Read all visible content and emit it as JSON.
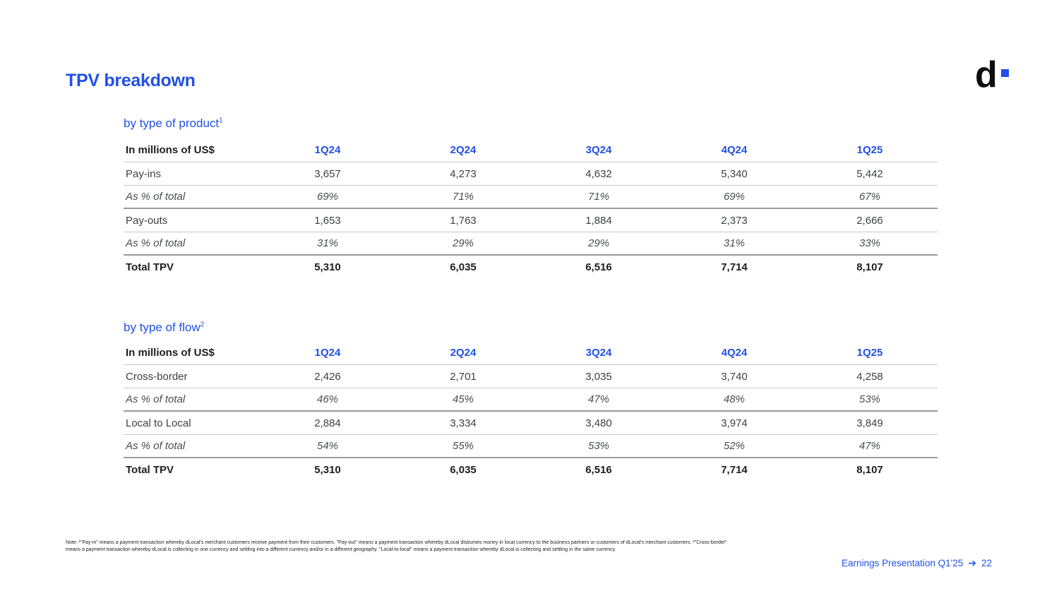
{
  "slide": {
    "title": "TPV breakdown",
    "logo_letter": "d",
    "note": "Note: ¹\"Pay-in\" means a payment transaction whereby dLocal's merchant customers receive payment from their customers. \"Pay-out\" means a payment transaction whereby dLocal disburses money in local currency to the business partners or customers of dLocal's merchant customers. ²\"Cross-border\" means a payment transaction whereby dLocal is collecting in one currency and settling into a different currency and/or in a different geography. \"Local-to-local\" means a payment transaction whereby dLocal is collecting and settling in the same currency.",
    "footer_link": "Earnings Presentation Q1'25",
    "footer_arrow": "➔",
    "page_number": "22"
  },
  "colors": {
    "accent_blue": "#2150E8",
    "text_dark": "#1f1f1f",
    "text_gray": "#3d4043",
    "divider_light": "#c9c9c9",
    "divider_dark": "#9b9b9b"
  },
  "tables": [
    {
      "heading": "by type of product",
      "heading_sup": "1",
      "header": {
        "label": "In millions of US$",
        "columns": [
          "1Q24",
          "2Q24",
          "3Q24",
          "4Q24",
          "1Q25"
        ]
      },
      "rows": [
        {
          "label": "Pay-ins",
          "values": [
            "3,657",
            "4,273",
            "4,632",
            "5,340",
            "5,442"
          ]
        },
        {
          "label": "As % of total",
          "values": [
            "69%",
            "71%",
            "71%",
            "69%",
            "67%"
          ]
        },
        {
          "label": "Pay-outs",
          "values": [
            "1,653",
            "1,763",
            "1,884",
            "2,373",
            "2,666"
          ]
        },
        {
          "label": "As % of total",
          "values": [
            "31%",
            "29%",
            "29%",
            "31%",
            "33%"
          ]
        },
        {
          "label": "Total TPV",
          "values": [
            "5,310",
            "6,035",
            "6,516",
            "7,714",
            "8,107"
          ]
        }
      ]
    },
    {
      "heading": "by type of flow",
      "heading_sup": "2",
      "header": {
        "label": "In millions of US$",
        "columns": [
          "1Q24",
          "2Q24",
          "3Q24",
          "4Q24",
          "1Q25"
        ]
      },
      "rows": [
        {
          "label": "Cross-border",
          "values": [
            "2,426",
            "2,701",
            "3,035",
            "3,740",
            "4,258"
          ]
        },
        {
          "label": "As % of total",
          "values": [
            "46%",
            "45%",
            "47%",
            "48%",
            "53%"
          ]
        },
        {
          "label": "Local to Local",
          "values": [
            "2,884",
            "3,334",
            "3,480",
            "3,974",
            "3,849"
          ]
        },
        {
          "label": "As % of total",
          "values": [
            "54%",
            "55%",
            "53%",
            "52%",
            "47%"
          ]
        },
        {
          "label": "Total TPV",
          "values": [
            "5,310",
            "6,035",
            "6,516",
            "7,714",
            "8,107"
          ]
        }
      ]
    }
  ]
}
